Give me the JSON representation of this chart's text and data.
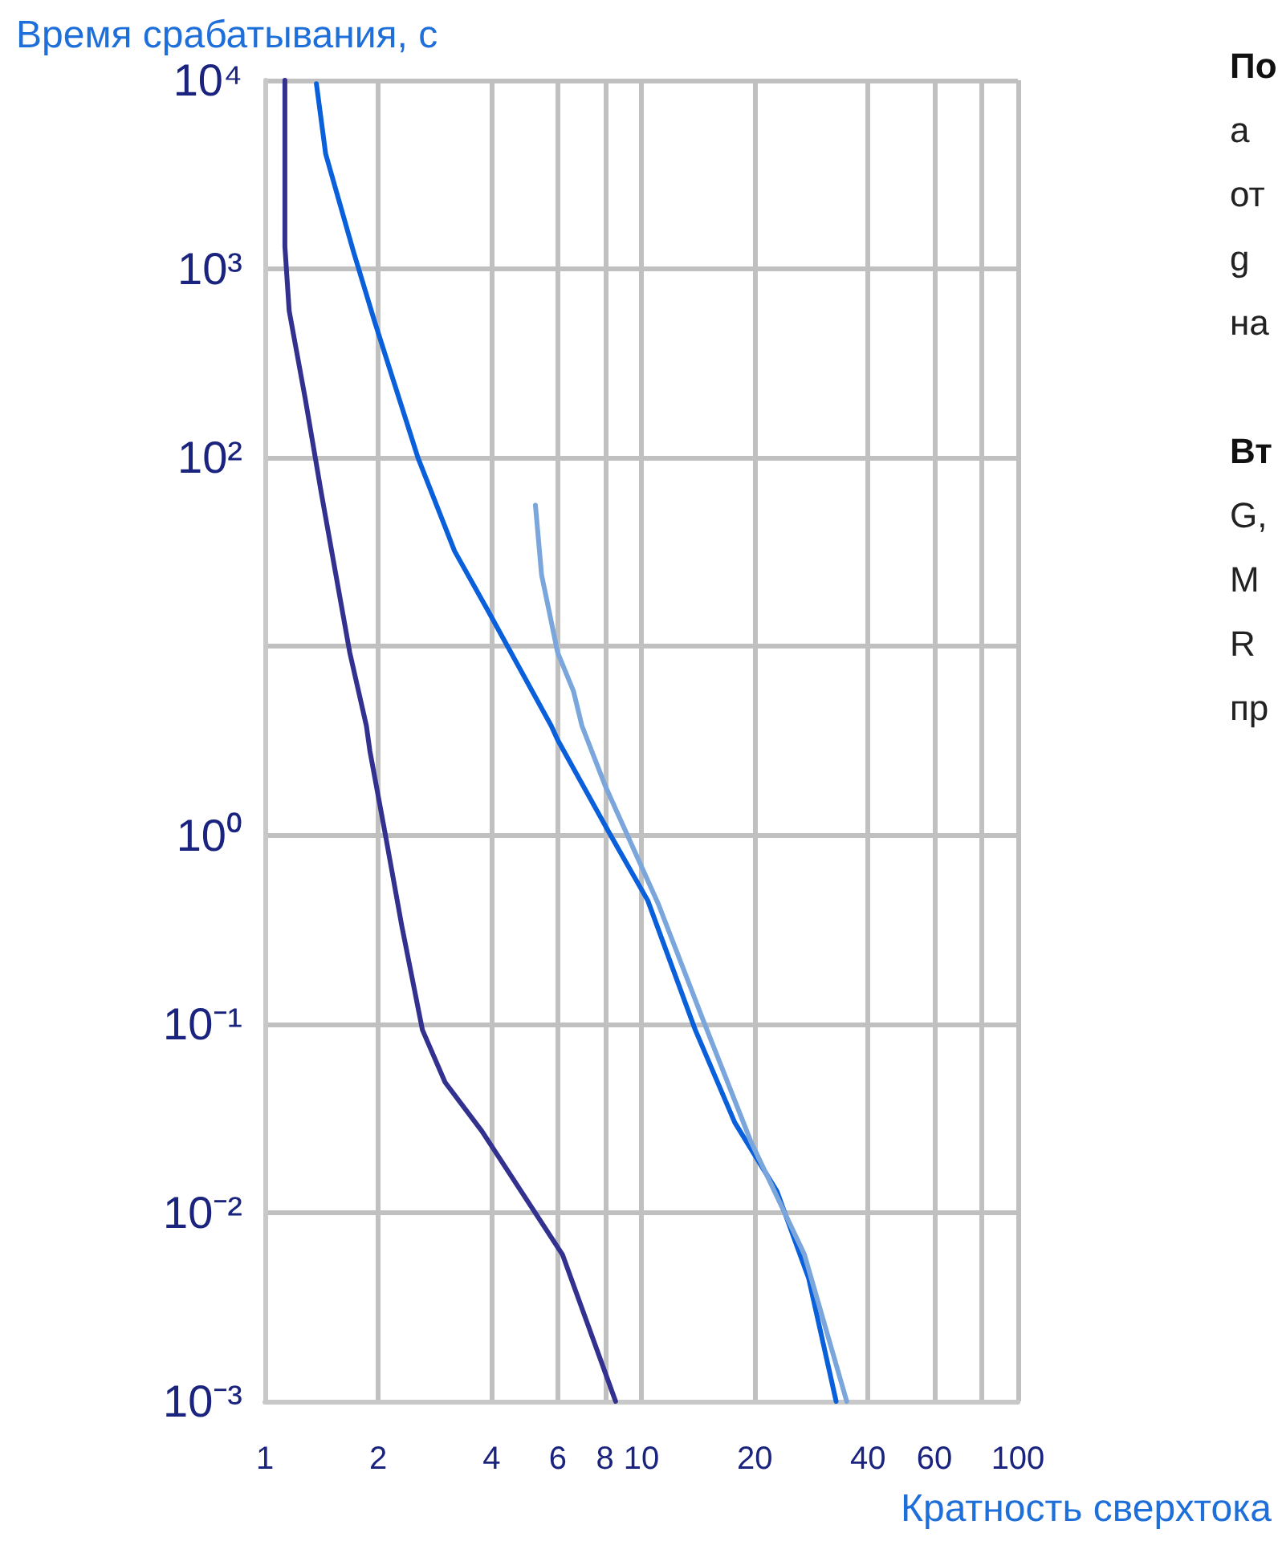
{
  "chart_data": {
    "type": "line",
    "ylabel": "Время срабатывания, с",
    "xlabel": "Кратность сверхтока",
    "log": "xy",
    "grid": true,
    "marker": "none",
    "line_style": "solid",
    "xlim": [
      1,
      100
    ],
    "xticks": [
      1,
      2,
      4,
      6,
      8,
      10,
      20,
      40,
      60,
      {
        "value": 80,
        "label": null
      },
      100
    ],
    "ylim": [
      0.001,
      10000
    ],
    "yticks": [
      {
        "value": 0.001,
        "label": "10⁻³"
      },
      {
        "value": 0.01,
        "label": "10⁻²"
      },
      {
        "value": 0.1,
        "label": "10⁻¹"
      },
      {
        "value": 1,
        "label": "10⁰"
      },
      {
        "value": 10,
        "label": null
      },
      {
        "value": 100,
        "label": "10²"
      },
      {
        "value": 1000,
        "label": "10³"
      },
      {
        "value": 10000,
        "label": "10⁴"
      }
    ],
    "series": [
      {
        "color": "#33318f",
        "x": [
          1.13,
          1.13,
          1.16,
          1.28,
          1.41,
          1.68,
          1.86,
          1.9,
          2.09,
          2.31,
          2.62,
          3.01,
          3.77,
          6.17,
          8.54
        ],
        "values": [
          10000,
          1318,
          600,
          205,
          66,
          9.3,
          3.8,
          2.8,
          1.0,
          0.33,
          0.093,
          0.049,
          0.027,
          0.006,
          0.001
        ]
      },
      {
        "color": "#0a5fdb",
        "x": [
          1.37,
          1.45,
          1.72,
          1.95,
          2.55,
          3.19,
          3.89,
          5.76,
          5.99,
          8.28,
          10.4,
          13.9,
          17.7,
          22.9,
          27.8,
          32.9
        ],
        "values": [
          9600,
          4070,
          1230,
          537,
          100,
          32,
          15.8,
          3.8,
          3.2,
          1.0,
          0.45,
          0.093,
          0.03,
          0.013,
          0.0045,
          0.001
        ]
      },
      {
        "color": "#7aa6dc",
        "x": [
          5.23,
          5.43,
          5.99,
          6.6,
          6.95,
          8.04,
          11.1,
          14.5,
          19.5,
          27.1,
          35.1
        ],
        "values": [
          56,
          24,
          9.3,
          5.8,
          3.8,
          1.8,
          0.43,
          0.108,
          0.024,
          0.006,
          0.001
        ]
      }
    ],
    "annotations": [
      "По",
      "a",
      "от",
      "g",
      "на",
      "Вт",
      "G,",
      "M",
      "R",
      "пр"
    ]
  }
}
